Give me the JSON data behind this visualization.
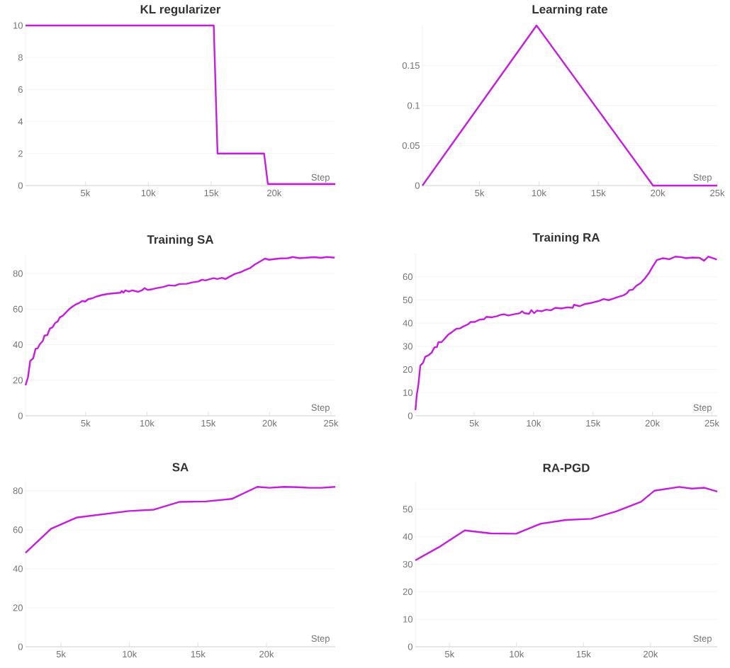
{
  "chart_data": [
    {
      "type": "line",
      "title": "KL regularizer",
      "xlabel": "Step",
      "color": "#c81be0",
      "grid": "y",
      "x": [
        250,
        15200,
        15500,
        19200,
        19500,
        24850
      ],
      "values": [
        10,
        10,
        2,
        2,
        0.1,
        0.1
      ],
      "xlim": [
        250,
        24850
      ],
      "ylim": [
        0,
        10
      ],
      "xticks": [
        {
          "value": 5000,
          "label": "5k"
        },
        {
          "value": 10000,
          "label": "10k"
        },
        {
          "value": 15000,
          "label": "15k"
        },
        {
          "value": 20000,
          "label": "20k"
        }
      ],
      "yticks": [
        0,
        2,
        4,
        6,
        8,
        10
      ]
    },
    {
      "type": "line",
      "title": "Learning rate",
      "xlabel": "Step",
      "color": "#c81be0",
      "grid": "y",
      "x": [
        200,
        9800,
        19600,
        25000
      ],
      "values": [
        0,
        0.2,
        0,
        0
      ],
      "xlim": [
        200,
        25000
      ],
      "ylim": [
        0,
        0.2
      ],
      "xticks": [
        {
          "value": 5000,
          "label": "5k"
        },
        {
          "value": 10000,
          "label": "10k"
        },
        {
          "value": 15000,
          "label": "15k"
        },
        {
          "value": 20000,
          "label": "20k"
        },
        {
          "value": 25000,
          "label": "25k"
        }
      ],
      "yticks": [
        0,
        0.05,
        0.1,
        0.15
      ]
    },
    {
      "type": "line",
      "title": "Training SA",
      "xlabel": "Step",
      "color": "#c81be0",
      "grid": "y",
      "x": [
        100,
        300,
        480,
        730,
        920,
        1100,
        1270,
        1500,
        1650,
        1880,
        2080,
        2300,
        2520,
        2750,
        2880,
        3130,
        3420,
        3650,
        3900,
        4190,
        4480,
        4730,
        4960,
        5200,
        5540,
        5920,
        6310,
        6790,
        7270,
        7850,
        7940,
        8080,
        8230,
        8520,
        8810,
        9290,
        9580,
        9810,
        10060,
        10440,
        10830,
        11310,
        11790,
        12270,
        12650,
        13230,
        13710,
        14190,
        14480,
        14770,
        15150,
        15440,
        15730,
        16120,
        16400,
        16790,
        17170,
        17650,
        18040,
        18420,
        18810,
        19190,
        19620,
        19960,
        20350,
        20920,
        21500,
        21880,
        22460,
        23040,
        23620,
        24190,
        24670,
        25300
      ],
      "values": [
        17.2,
        21.6,
        30.8,
        32.4,
        37.7,
        38,
        40.3,
        42,
        45.1,
        45.4,
        49,
        49.7,
        52.2,
        53.3,
        55.3,
        56.2,
        58.3,
        59.9,
        61.2,
        62.6,
        63.5,
        64.6,
        64.2,
        65.5,
        66.1,
        67.1,
        67.9,
        68.5,
        68.9,
        69.2,
        70.2,
        69.2,
        70.5,
        69.8,
        70.5,
        69.7,
        70.5,
        71.8,
        70.8,
        71.2,
        71.8,
        72.4,
        73.4,
        73.1,
        74.1,
        74.2,
        75,
        75.5,
        76.5,
        76.1,
        76.9,
        77.4,
        76.9,
        77.6,
        76.9,
        78.4,
        79.8,
        80.8,
        82.1,
        83.1,
        85.1,
        86.6,
        88.4,
        87.7,
        88.1,
        88.5,
        88.6,
        89.3,
        88.6,
        88.9,
        89.2,
        88.8,
        89.3,
        88.9
      ],
      "xlim": [
        100,
        25350
      ],
      "ylim": [
        0,
        90
      ],
      "xticks": [
        {
          "value": 5000,
          "label": "5k"
        },
        {
          "value": 10000,
          "label": "10k"
        },
        {
          "value": 15000,
          "label": "15k"
        },
        {
          "value": 20000,
          "label": "20k"
        },
        {
          "value": 25000,
          "label": "25k"
        }
      ],
      "yticks": [
        0,
        20,
        40,
        60,
        80
      ]
    },
    {
      "type": "line",
      "title": "Training RA",
      "xlabel": "Step",
      "color": "#c81be0",
      "grid": "y",
      "x": [
        60,
        170,
        310,
        470,
        700,
        890,
        1180,
        1430,
        1670,
        1860,
        2000,
        2250,
        2540,
        2830,
        3120,
        3510,
        3800,
        4190,
        4480,
        4710,
        5060,
        5450,
        5830,
        6030,
        6510,
        6900,
        7190,
        7480,
        7870,
        8350,
        8840,
        9030,
        9220,
        9610,
        9810,
        10040,
        10290,
        10680,
        11070,
        11450,
        11840,
        12330,
        12810,
        13290,
        13390,
        13880,
        14360,
        14750,
        15140,
        15520,
        15910,
        16300,
        16780,
        17170,
        17560,
        17850,
        18040,
        18330,
        18620,
        19010,
        19400,
        19690,
        20040,
        20370,
        20850,
        21430,
        21920,
        22400,
        22830,
        23370,
        23950,
        24340,
        24690,
        25120,
        25410
      ],
      "values": [
        2.5,
        9,
        13.5,
        21.7,
        22.9,
        25.5,
        26.2,
        27.3,
        29.6,
        29.6,
        31.8,
        31.8,
        33.4,
        35.1,
        36.1,
        37.6,
        37.7,
        38.8,
        39.5,
        40.5,
        40.5,
        41.5,
        41.7,
        42.7,
        42.5,
        43,
        43.5,
        43.8,
        43.3,
        43.8,
        44.3,
        45.1,
        44.3,
        44,
        45.6,
        44.3,
        45.4,
        45.1,
        45.8,
        45.5,
        46.6,
        46.3,
        46.8,
        46.6,
        47.9,
        47.3,
        48.3,
        48.6,
        49.1,
        49.6,
        50.4,
        49.9,
        50.7,
        51.4,
        52,
        52.9,
        54.2,
        54.4,
        56,
        57.3,
        59.5,
        61.5,
        64.6,
        67.2,
        68,
        67.6,
        68.7,
        68.5,
        68,
        68.3,
        68.2,
        66.9,
        68.7,
        68,
        67.4
      ],
      "xlim": [
        50,
        25450
      ],
      "ylim": [
        0,
        70
      ],
      "xticks": [
        {
          "value": 5000,
          "label": "5k"
        },
        {
          "value": 10000,
          "label": "10k"
        },
        {
          "value": 15000,
          "label": "15k"
        },
        {
          "value": 20000,
          "label": "20k"
        },
        {
          "value": 25000,
          "label": "25k"
        }
      ],
      "yticks": [
        0,
        10,
        20,
        30,
        40,
        50,
        60
      ]
    },
    {
      "type": "line",
      "title": "SA",
      "xlabel": "Step",
      "color": "#c81be0",
      "grid": "y",
      "x": [
        2410,
        4280,
        6170,
        9970,
        11780,
        13670,
        15570,
        17470,
        19330,
        20220,
        21260,
        22290,
        23160,
        24020,
        25020
      ],
      "values": [
        48.2,
        60.5,
        66.3,
        69.6,
        70.3,
        74.3,
        74.5,
        75.8,
        82,
        81.5,
        82,
        81.8,
        81.5,
        81.5,
        82
      ],
      "xlim": [
        2410,
        25020
      ],
      "ylim": [
        0,
        85
      ],
      "xticks": [
        {
          "value": 5000,
          "label": "5k"
        },
        {
          "value": 10000,
          "label": "10k"
        },
        {
          "value": 15000,
          "label": "15k"
        },
        {
          "value": 20000,
          "label": "20k"
        }
      ],
      "yticks": [
        0,
        20,
        40,
        60,
        80
      ]
    },
    {
      "type": "line",
      "title": "RA-PGD",
      "xlabel": "Step",
      "color": "#c81be0",
      "grid": "y",
      "x": [
        2450,
        4210,
        6140,
        8090,
        9980,
        11790,
        13690,
        15590,
        17480,
        19290,
        20280,
        22140,
        23090,
        24030,
        24980
      ],
      "values": [
        31.4,
        36.2,
        42.3,
        41.2,
        41.1,
        44.7,
        46.1,
        46.5,
        49.3,
        52.7,
        56.7,
        58.1,
        57.5,
        57.8,
        56.4
      ],
      "xlim": [
        2450,
        24980
      ],
      "ylim": [
        0,
        60
      ],
      "xticks": [
        {
          "value": 5000,
          "label": "5k"
        },
        {
          "value": 10000,
          "label": "10k"
        },
        {
          "value": 15000,
          "label": "15k"
        },
        {
          "value": 20000,
          "label": "20k"
        }
      ],
      "yticks": [
        0,
        10,
        20,
        30,
        40,
        50
      ]
    }
  ]
}
